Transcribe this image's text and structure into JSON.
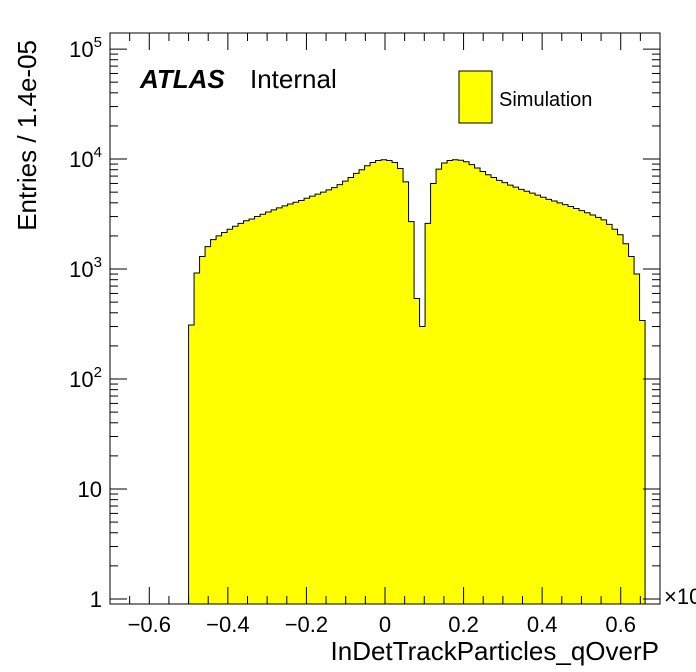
{
  "chart_data": {
    "type": "bar",
    "style": "histogram",
    "title": "",
    "xlabel": "InDetTrackParticles_qOverP",
    "ylabel": "Entries / 1.4e-05",
    "x_multiplier_label": "×10",
    "xlim": [
      -0.7,
      0.7
    ],
    "ylim": [
      0.9,
      140000
    ],
    "y_scale": "log",
    "x_ticks": [
      -0.6,
      -0.4,
      -0.2,
      0,
      0.2,
      0.4,
      0.6
    ],
    "x_tick_labels": [
      "−0.6",
      "−0.4",
      "−0.2",
      "0",
      "0.2",
      "0.4",
      "0.6"
    ],
    "y_ticks": [
      1,
      10,
      100,
      1000,
      10000,
      100000
    ],
    "y_tick_labels": [
      {
        "base": "1",
        "exp": ""
      },
      {
        "base": "10",
        "exp": ""
      },
      {
        "base": "10",
        "exp": "2"
      },
      {
        "base": "10",
        "exp": "3"
      },
      {
        "base": "10",
        "exp": "4"
      },
      {
        "base": "10",
        "exp": "5"
      }
    ],
    "grid": false,
    "legend_position": "top-right",
    "fill_color": "#ffff00",
    "line_color": "#000000",
    "atlas_label": "ATLAS",
    "atlas_sublabel": "Internal",
    "bin_width": 0.014,
    "x_start": -0.5,
    "series": [
      {
        "name": "Simulation",
        "values": [
          310,
          920,
          1300,
          1600,
          1850,
          2000,
          2150,
          2300,
          2450,
          2600,
          2750,
          2850,
          3000,
          3150,
          3300,
          3450,
          3600,
          3750,
          3900,
          4050,
          4200,
          4400,
          4600,
          4800,
          5000,
          5250,
          5500,
          5850,
          6300,
          6800,
          7400,
          8000,
          8700,
          9300,
          9700,
          9850,
          9700,
          9300,
          8200,
          6200,
          2700,
          540,
          300,
          2600,
          6000,
          8100,
          9200,
          9700,
          9850,
          9750,
          9450,
          8900,
          8300,
          7700,
          7200,
          6800,
          6400,
          6100,
          5800,
          5550,
          5300,
          5100,
          4900,
          4700,
          4500,
          4300,
          4150,
          4000,
          3850,
          3700,
          3550,
          3400,
          3250,
          3100,
          2950,
          2800,
          2550,
          2300,
          2050,
          1700,
          1300,
          900,
          340
        ]
      }
    ]
  }
}
